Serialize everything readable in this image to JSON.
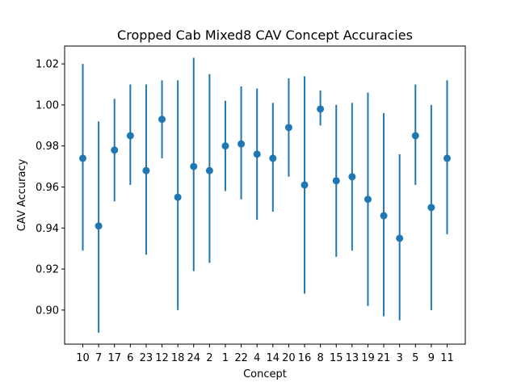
{
  "chart_data": {
    "type": "scatter",
    "title": "Cropped Cab Mixed8 CAV Concept Accuracies",
    "xlabel": "Concept",
    "ylabel": "CAV Accuracy",
    "ylim": [
      0.8834,
      1.0287
    ],
    "yticks": [
      0.9,
      0.92,
      0.94,
      0.96,
      0.98,
      1.0,
      1.02
    ],
    "ytick_labels": [
      "0.90",
      "0.92",
      "0.94",
      "0.96",
      "0.98",
      "1.00",
      "1.02"
    ],
    "grid": false,
    "color": "#1f77b4",
    "categories": [
      "10",
      "7",
      "17",
      "6",
      "23",
      "12",
      "18",
      "24",
      "2",
      "1",
      "22",
      "4",
      "14",
      "20",
      "16",
      "8",
      "15",
      "13",
      "19",
      "21",
      "3",
      "5",
      "9",
      "11"
    ],
    "values": [
      0.974,
      0.941,
      0.978,
      0.985,
      0.968,
      0.993,
      0.955,
      0.97,
      0.968,
      0.98,
      0.981,
      0.976,
      0.974,
      0.989,
      0.961,
      0.998,
      0.963,
      0.965,
      0.954,
      0.946,
      0.935,
      0.985,
      0.95,
      0.974
    ],
    "err_low": [
      0.929,
      0.889,
      0.953,
      0.961,
      0.927,
      0.974,
      0.9,
      0.919,
      0.923,
      0.958,
      0.954,
      0.944,
      0.948,
      0.965,
      0.908,
      0.99,
      0.926,
      0.929,
      0.902,
      0.897,
      0.895,
      0.961,
      0.9,
      0.937
    ],
    "err_high": [
      1.02,
      0.992,
      1.003,
      1.01,
      1.01,
      1.012,
      1.012,
      1.023,
      1.015,
      1.002,
      1.009,
      1.008,
      1.001,
      1.013,
      1.014,
      1.007,
      1.0,
      1.001,
      1.006,
      0.996,
      0.976,
      1.01,
      1.0,
      1.012
    ]
  }
}
